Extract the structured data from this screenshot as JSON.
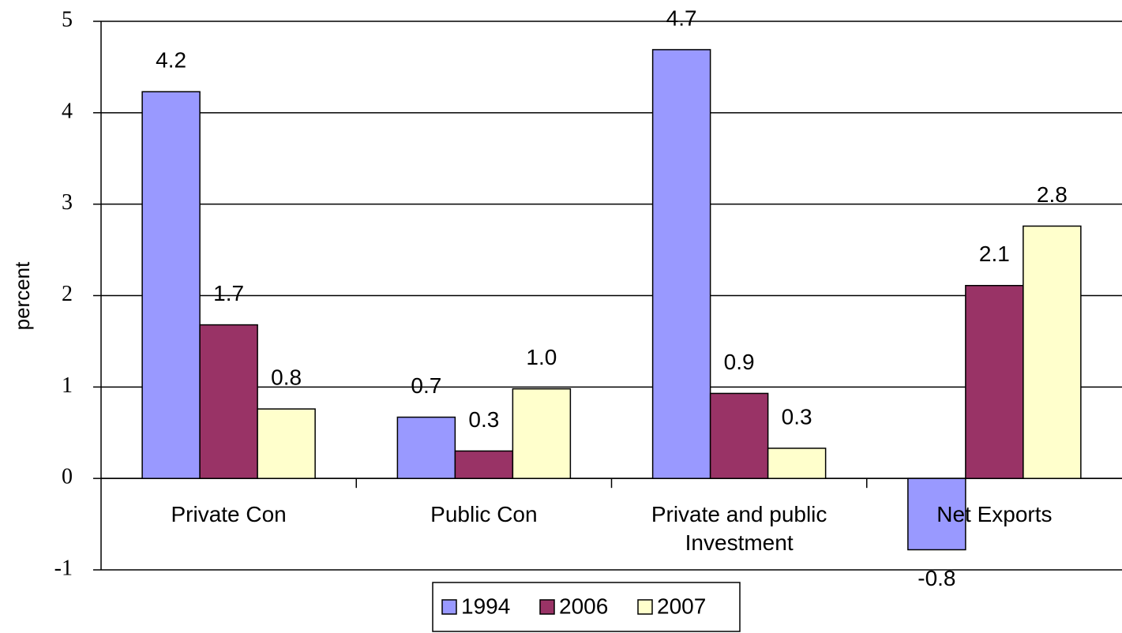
{
  "chart_data": {
    "type": "bar",
    "y_label": "percent",
    "categories": [
      "Private Con",
      "Public Con",
      "Private and public Investment",
      "Net Exports"
    ],
    "series": [
      {
        "name": "1994",
        "color": "#9999ff",
        "values": [
          4.23,
          0.67,
          4.69,
          -0.78
        ],
        "value_labels": [
          "4.2",
          "0.7",
          "4.7",
          "-0.8"
        ]
      },
      {
        "name": "2006",
        "color": "#993366",
        "values": [
          1.68,
          0.3,
          0.93,
          2.11
        ],
        "value_labels": [
          "1.7",
          "0.3",
          "0.9",
          "2.1"
        ]
      },
      {
        "name": "2007",
        "color": "#ffffcc",
        "values": [
          0.76,
          0.98,
          0.33,
          2.76
        ],
        "value_labels": [
          "0.8",
          "1.0",
          "0.3",
          "2.8"
        ]
      }
    ],
    "ylim": [
      -1,
      5
    ],
    "yticks": [
      -1,
      0,
      1,
      2,
      3,
      4,
      5
    ],
    "grid": true,
    "legend": "bottom"
  }
}
